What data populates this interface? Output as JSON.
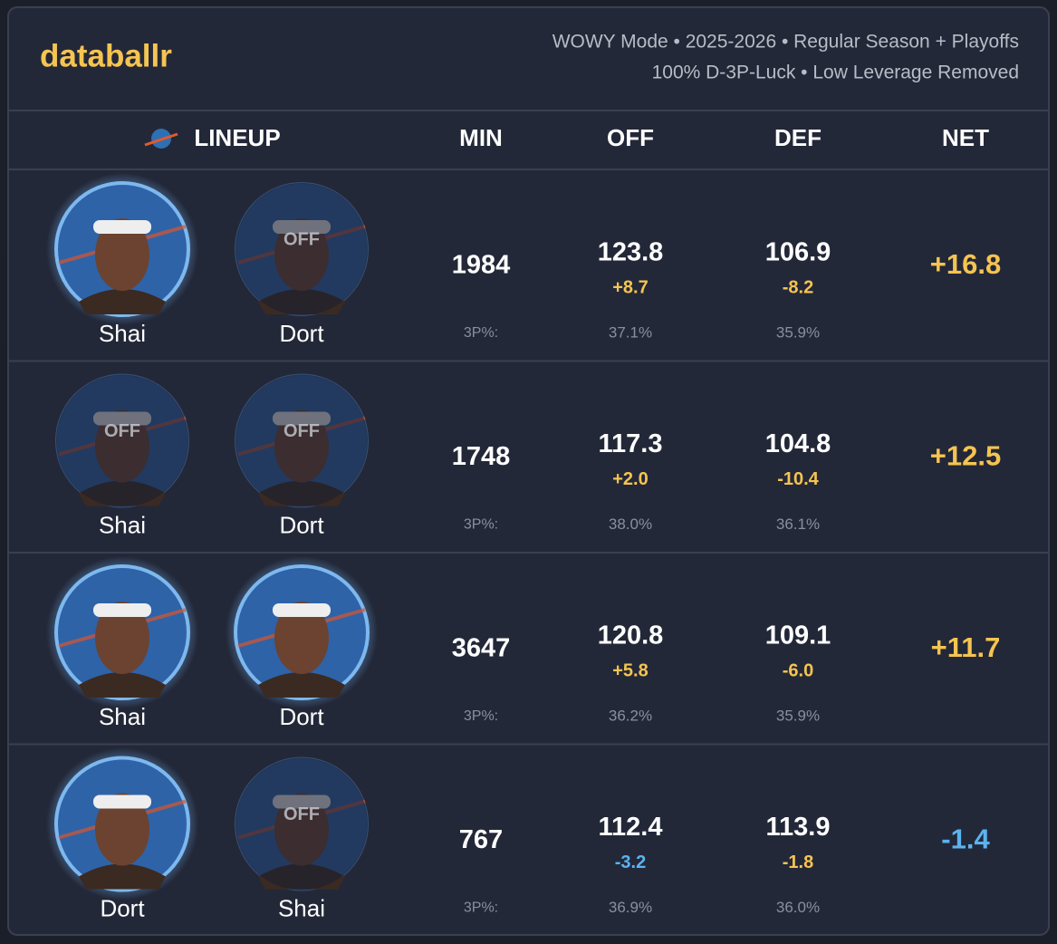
{
  "header": {
    "logo": "databallr",
    "subtitle": [
      "WOWY Mode • 2025-2026 • Regular Season + Playoffs",
      "100% D-3P-Luck • Low Leverage Removed"
    ]
  },
  "table": {
    "columns": [
      "LINEUP",
      "MIN",
      "OFF",
      "DEF",
      "NET"
    ],
    "rows": [
      {
        "players": [
          {
            "name": "Shai",
            "status": "on"
          },
          {
            "name": "Dort",
            "status": "off",
            "overlay": "OFF"
          }
        ],
        "min": "1984",
        "off": "123.8",
        "off_delta": "+8.7",
        "off_delta_color": "#f5c451",
        "def": "106.9",
        "def_delta": "-8.2",
        "def_delta_color": "#f5c451",
        "net": "+16.8",
        "net_color": "#f5c451",
        "three_label": "3P%:",
        "off_3p": "37.1%",
        "def_3p": "35.9%"
      },
      {
        "players": [
          {
            "name": "Shai",
            "status": "off",
            "overlay": "OFF"
          },
          {
            "name": "Dort",
            "status": "off",
            "overlay": "OFF"
          }
        ],
        "min": "1748",
        "off": "117.3",
        "off_delta": "+2.0",
        "off_delta_color": "#f5c451",
        "def": "104.8",
        "def_delta": "-10.4",
        "def_delta_color": "#f5c451",
        "net": "+12.5",
        "net_color": "#f5c451",
        "three_label": "3P%:",
        "off_3p": "38.0%",
        "def_3p": "36.1%"
      },
      {
        "players": [
          {
            "name": "Shai",
            "status": "on"
          },
          {
            "name": "Dort",
            "status": "on"
          }
        ],
        "min": "3647",
        "off": "120.8",
        "off_delta": "+5.8",
        "off_delta_color": "#f5c451",
        "def": "109.1",
        "def_delta": "-6.0",
        "def_delta_color": "#f5c451",
        "net": "+11.7",
        "net_color": "#f5c451",
        "three_label": "3P%:",
        "off_3p": "36.2%",
        "def_3p": "35.9%"
      },
      {
        "players": [
          {
            "name": "Dort",
            "status": "on"
          },
          {
            "name": "Shai",
            "status": "off",
            "overlay": "OFF"
          }
        ],
        "min": "767",
        "off": "112.4",
        "off_delta": "-3.2",
        "off_delta_color": "#5bb3f0",
        "def": "113.9",
        "def_delta": "-1.8",
        "def_delta_color": "#f5c451",
        "net": "-1.4",
        "net_color": "#5bb3f0",
        "three_label": "3P%:",
        "off_3p": "36.9%",
        "def_3p": "36.0%"
      }
    ]
  }
}
